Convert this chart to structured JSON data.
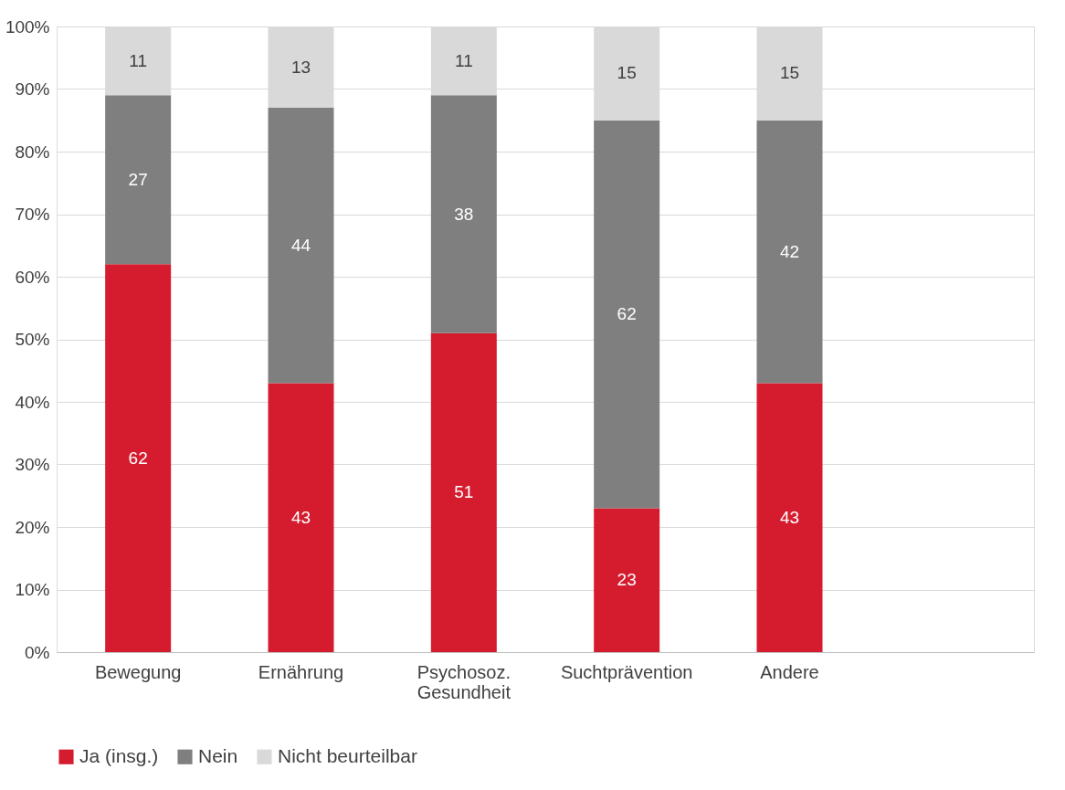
{
  "chart_data": {
    "type": "bar",
    "stacked": true,
    "data_labels": true,
    "grid": "y",
    "legend": "bottom",
    "categories": [
      "Bewegung",
      "Ernährung",
      "Psychosoz. Gesundheit",
      "Suchtprävention",
      "Andere",
      null
    ],
    "series": [
      {
        "name": "Ja (insg.)",
        "color": "#d51c2f",
        "values": [
          62,
          43,
          51,
          23,
          43,
          null
        ]
      },
      {
        "name": "Nein",
        "color": "#7f7f7f",
        "values": [
          27,
          44,
          38,
          62,
          42,
          null
        ]
      },
      {
        "name": "Nicht beurteilbar",
        "color": "#d9d9d9",
        "values": [
          11,
          13,
          11,
          15,
          15,
          null
        ]
      }
    ],
    "ylim": [
      0,
      100
    ],
    "yticks": [
      {
        "value": 0,
        "label": "0%"
      },
      {
        "value": 10,
        "label": "10%"
      },
      {
        "value": 20,
        "label": "20%"
      },
      {
        "value": 30,
        "label": "30%"
      },
      {
        "value": 40,
        "label": "40%"
      },
      {
        "value": 50,
        "label": "50%"
      },
      {
        "value": 60,
        "label": "60%"
      },
      {
        "value": 70,
        "label": "70%"
      },
      {
        "value": 80,
        "label": "80%"
      },
      {
        "value": 90,
        "label": "90%"
      },
      {
        "value": 100,
        "label": "100%"
      }
    ]
  }
}
